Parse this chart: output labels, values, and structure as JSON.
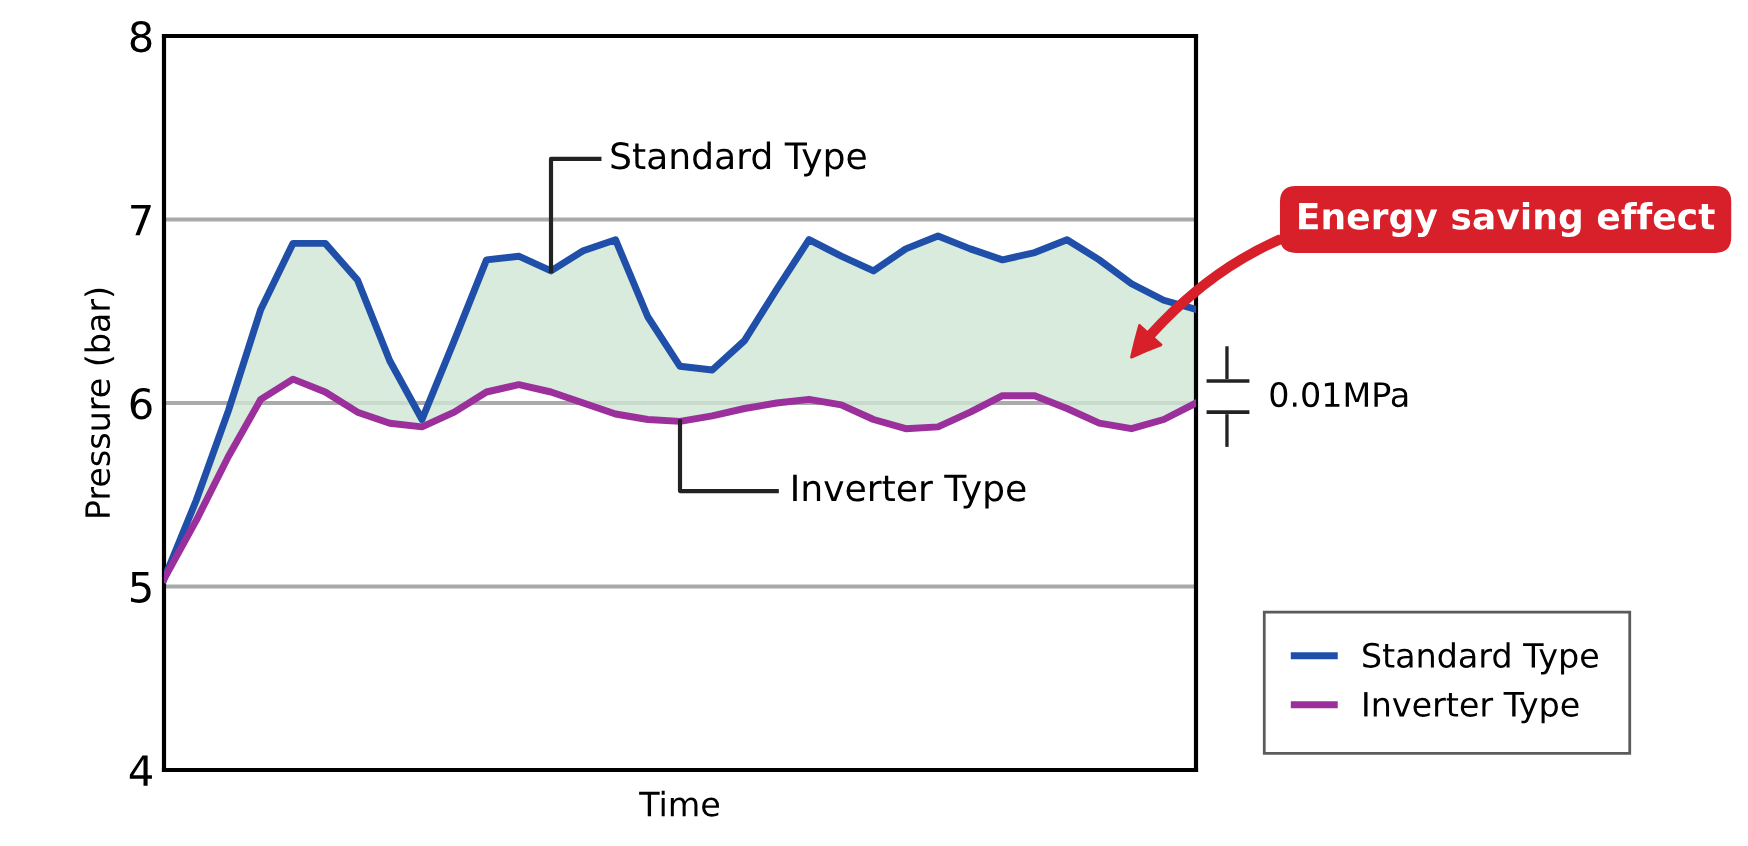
{
  "chart_data": {
    "type": "line",
    "xlabel": "Time",
    "ylabel": "Pressure (bar)",
    "categories": [
      null,
      null,
      null,
      null,
      null,
      null,
      null,
      null,
      null,
      null,
      null,
      null,
      null,
      null,
      null,
      null,
      null,
      null,
      null,
      null,
      null,
      null,
      null,
      null,
      null,
      null,
      null,
      null,
      null,
      null,
      null,
      null,
      null
    ],
    "series": [
      {
        "name": "Standard Type",
        "color": "#1f4fa8",
        "values": [
          5.04,
          5.47,
          5.96,
          6.51,
          6.87,
          6.87,
          6.67,
          6.23,
          5.91,
          6.34,
          6.78,
          6.8,
          6.72,
          6.83,
          6.89,
          6.47,
          6.2,
          6.18,
          6.34,
          6.62,
          6.89,
          6.8,
          6.72,
          6.84,
          6.91,
          6.84,
          6.78,
          6.82,
          6.89,
          6.78,
          6.65,
          6.56,
          6.51
        ]
      },
      {
        "name": "Inverter Type",
        "color": "#9b2f9b",
        "values": [
          5.04,
          5.36,
          5.71,
          6.02,
          6.13,
          6.06,
          5.95,
          5.89,
          5.87,
          5.95,
          6.06,
          6.1,
          6.06,
          6.0,
          5.94,
          5.91,
          5.9,
          5.93,
          5.97,
          6.0,
          6.02,
          5.99,
          5.91,
          5.86,
          5.87,
          5.95,
          6.04,
          6.04,
          5.97,
          5.89,
          5.86,
          5.91,
          6.0
        ]
      }
    ],
    "ylim": [
      4,
      8
    ],
    "yticks": [
      4,
      5,
      6,
      7,
      8
    ],
    "grid": "y",
    "legend": "bottom right",
    "marker": "none",
    "line_style": "solid",
    "annotations": [
      "Standard Type",
      "Inverter Type",
      "Energy saving effect",
      "0.01MPa"
    ]
  }
}
